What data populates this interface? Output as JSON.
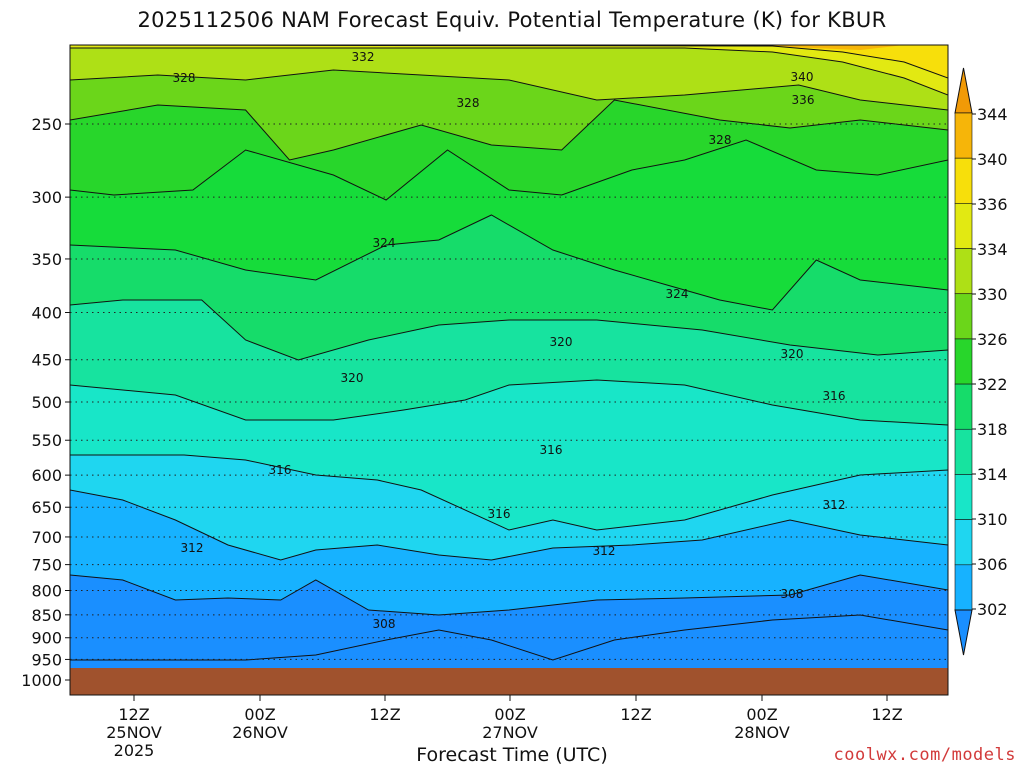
{
  "chart_data": {
    "type": "heatmap",
    "title": "2025112506 NAM Forecast Equiv. Potential Temperature (K) for KBUR",
    "xlabel": "Forecast Time (UTC)",
    "ylabel": "",
    "y_axis": {
      "scale": "log",
      "inverted": true,
      "ticks": [
        250,
        300,
        350,
        400,
        450,
        500,
        550,
        600,
        650,
        700,
        750,
        800,
        850,
        900,
        950,
        1000
      ],
      "range": [
        200,
        1000
      ]
    },
    "x_axis": {
      "ticks": [
        {
          "label": [
            "12Z",
            "25NOV",
            "2025"
          ]
        },
        {
          "label": [
            "00Z",
            "26NOV"
          ]
        },
        {
          "label": [
            "12Z"
          ]
        },
        {
          "label": [
            "00Z",
            "27NOV"
          ]
        },
        {
          "label": [
            "12Z"
          ]
        },
        {
          "label": [
            "00Z",
            "28NOV"
          ]
        },
        {
          "label": [
            "12Z"
          ]
        }
      ]
    },
    "grid": "dotted horizontal",
    "colorbar": {
      "levels": [
        302,
        306,
        310,
        314,
        318,
        322,
        326,
        330,
        334,
        336,
        340,
        344
      ],
      "colors": [
        "#1a8fff",
        "#17b2ff",
        "#1fd6f0",
        "#18e6c8",
        "#17e39f",
        "#16dc6a",
        "#28d62b",
        "#6bd61a",
        "#aee016",
        "#e2e912",
        "#f7df0b",
        "#f6b509",
        "#f19a07"
      ]
    },
    "contour_labels": [
      {
        "text": "332"
      },
      {
        "text": "328"
      },
      {
        "text": "328"
      },
      {
        "text": "340"
      },
      {
        "text": "336"
      },
      {
        "text": "328"
      },
      {
        "text": "324"
      },
      {
        "text": "324"
      },
      {
        "text": "320"
      },
      {
        "text": "320"
      },
      {
        "text": "320"
      },
      {
        "text": "316"
      },
      {
        "text": "316"
      },
      {
        "text": "316"
      },
      {
        "text": "316"
      },
      {
        "text": "312"
      },
      {
        "text": "312"
      },
      {
        "text": "312"
      },
      {
        "text": "308"
      },
      {
        "text": "308"
      }
    ],
    "bands": [
      {
        "theta": 344,
        "color": "#f6b509"
      },
      {
        "theta": 340,
        "color": "#f7df0b"
      },
      {
        "theta": 336,
        "color": "#e2e912"
      },
      {
        "theta": 332,
        "color": "#aee016"
      },
      {
        "theta": 328,
        "color": "#6bd61a"
      },
      {
        "theta": 326,
        "color": "#28d62b"
      },
      {
        "theta": 324,
        "color": "#16dc3a"
      },
      {
        "theta": 320,
        "color": "#16dc6a"
      },
      {
        "theta": 316,
        "color": "#17e39f"
      },
      {
        "theta": 314,
        "color": "#18e6c8"
      },
      {
        "theta": 310,
        "color": "#1fd6f0"
      },
      {
        "theta": 306,
        "color": "#17b2ff"
      },
      {
        "theta": 302,
        "color": "#1a8fff"
      }
    ],
    "ground_color": "#a0522d"
  },
  "footer": {
    "credit": "coolwx.com/models"
  }
}
